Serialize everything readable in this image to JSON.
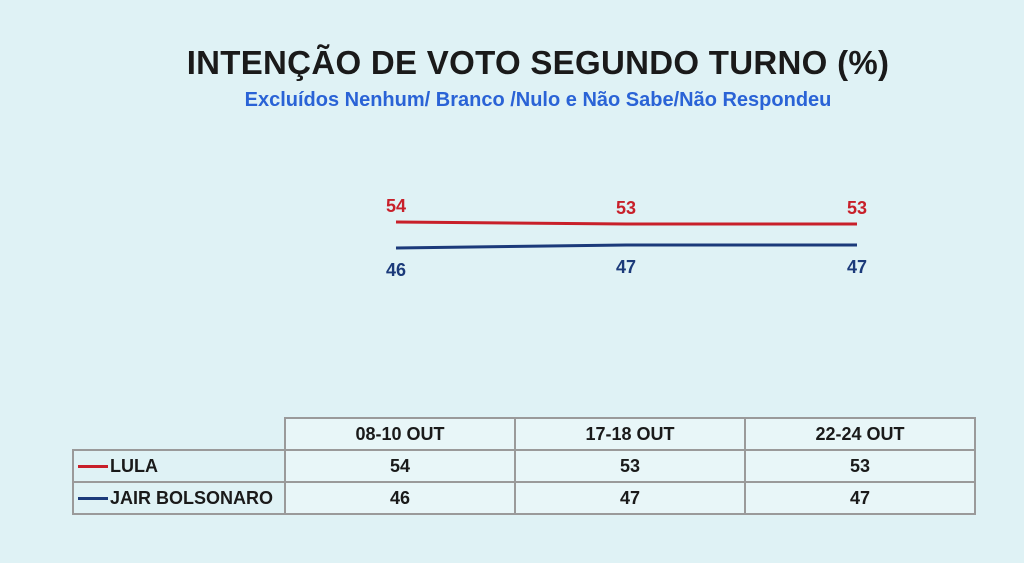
{
  "chart_data": {
    "type": "line",
    "title": "INTENÇÃO DE VOTO SEGUNDO TURNO (%)",
    "subtitle": "Excluídos Nenhum/ Branco /Nulo  e Não Sabe/Não Respondeu",
    "categories": [
      "08-10 OUT",
      "17-18 OUT",
      "22-24 OUT"
    ],
    "series": [
      {
        "name": "LULA",
        "color": "#c8202a",
        "values": [
          54,
          53,
          53
        ]
      },
      {
        "name": "JAIR BOLSONARO",
        "color": "#1b3a7a",
        "values": [
          46,
          47,
          47
        ]
      }
    ],
    "legend": "table",
    "grid": false
  }
}
